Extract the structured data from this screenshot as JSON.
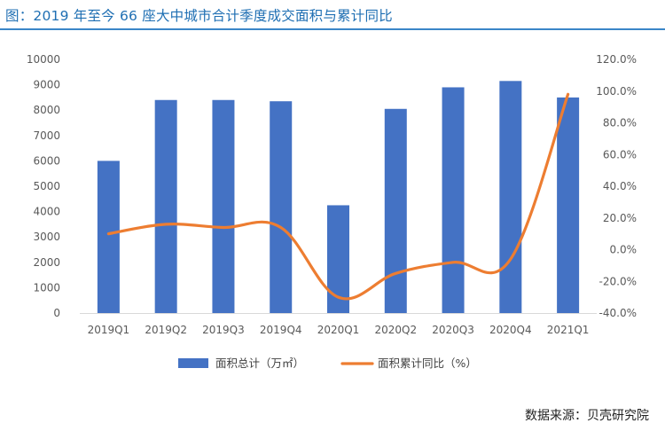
{
  "title": "图：2019 年至今 66 座大中城市合计季度成交面积与累计同比",
  "source": "数据来源：贝壳研究院",
  "colors": {
    "bar": "#4472C4",
    "line": "#ED7D31",
    "title": "#1f6fb3",
    "rule": "#3a86c8"
  },
  "chart_data": {
    "type": "bar",
    "categories": [
      "2019Q1",
      "2019Q2",
      "2019Q3",
      "2019Q4",
      "2020Q1",
      "2020Q2",
      "2020Q3",
      "2020Q4",
      "2021Q1"
    ],
    "series": [
      {
        "name": "面积总计（万㎡）",
        "type": "bar",
        "axis": "left",
        "values": [
          6000,
          8400,
          8400,
          8350,
          4250,
          8050,
          8900,
          9150,
          8500
        ]
      },
      {
        "name": "面积累计同比（%）",
        "type": "line",
        "axis": "right",
        "values": [
          10.0,
          16.0,
          14.0,
          14.0,
          -30.0,
          -15.0,
          -8.0,
          -6.0,
          98.0
        ]
      }
    ],
    "y_left": {
      "min": 0,
      "max": 10000,
      "step": 1000,
      "ticks": [
        "0",
        "1000",
        "2000",
        "3000",
        "4000",
        "5000",
        "6000",
        "7000",
        "8000",
        "9000",
        "10000"
      ]
    },
    "y_right": {
      "min": -40,
      "max": 120,
      "step": 20,
      "ticks": [
        "-40.0%",
        "-20.0%",
        "0.0%",
        "20.0%",
        "40.0%",
        "60.0%",
        "80.0%",
        "100.0%",
        "120.0%"
      ]
    },
    "legend": {
      "position": "bottom"
    },
    "grid": false
  }
}
